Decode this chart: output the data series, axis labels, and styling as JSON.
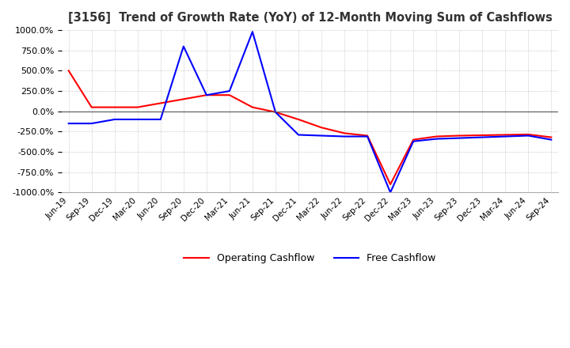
{
  "title": "[3156]  Trend of Growth Rate (YoY) of 12-Month Moving Sum of Cashflows",
  "ylim": [
    -1000,
    1000
  ],
  "yticks": [
    -1000,
    -750,
    -500,
    -250,
    0,
    250,
    500,
    750,
    1000
  ],
  "background_color": "#ffffff",
  "grid_color": "#aaaaaa",
  "operating_color": "#ff0000",
  "free_color": "#0000ff",
  "legend_labels": [
    "Operating Cashflow",
    "Free Cashflow"
  ],
  "x_labels": [
    "Jun-19",
    "Sep-19",
    "Dec-19",
    "Mar-20",
    "Jun-20",
    "Sep-20",
    "Dec-20",
    "Mar-21",
    "Jun-21",
    "Sep-21",
    "Dec-21",
    "Mar-22",
    "Jun-22",
    "Sep-22",
    "Dec-22",
    "Mar-23",
    "Jun-23",
    "Sep-23",
    "Dec-23",
    "Mar-24",
    "Jun-24",
    "Sep-24"
  ],
  "operating": [
    500,
    50,
    50,
    50,
    100,
    150,
    200,
    200,
    50,
    -10,
    -100,
    -200,
    -270,
    -300,
    -900,
    -350,
    -310,
    -300,
    -295,
    -290,
    -285,
    -320
  ],
  "free": [
    -150,
    -150,
    -100,
    -100,
    -100,
    800,
    200,
    250,
    980,
    -10,
    -290,
    -300,
    -310,
    -310,
    -1000,
    -370,
    -340,
    -330,
    -320,
    -310,
    -300,
    -350
  ]
}
